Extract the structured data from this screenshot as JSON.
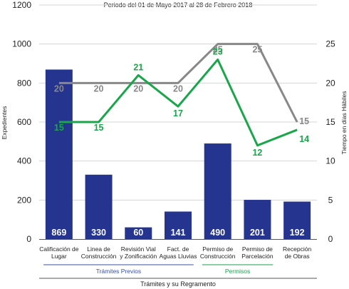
{
  "chart_data": {
    "type": "bar",
    "title": "Periodo del 01 de Mayo 2017 al 28 de Febrero 2018",
    "xlabel": "Trámites y su Regramento",
    "ylabel": "Expedientes",
    "y2label": "Tiempo en días Hábiles",
    "ylim": [
      0,
      1200
    ],
    "y_ticks": [
      "0",
      "200",
      "400",
      "600",
      "800",
      "1000",
      "1200"
    ],
    "y2lim": [
      0,
      30
    ],
    "y2_ticks": [
      "0",
      "5",
      "10",
      "15",
      "20",
      "25"
    ],
    "categories": [
      [
        "Calificación de",
        "Lugar"
      ],
      [
        "Linea de",
        "Construcción"
      ],
      [
        "Revisión Vial",
        "y Zonificación"
      ],
      [
        "Fact. de",
        "Aguas Lluvias"
      ],
      [
        "Permiso de",
        "Construcción"
      ],
      [
        "Permiso de",
        "Parcelación"
      ],
      [
        "Recepción",
        "de Obras"
      ]
    ],
    "groups": [
      {
        "name": "Trámites Previos",
        "from": 0,
        "to": 3,
        "color": "#3a50a8"
      },
      {
        "name": "Permisos",
        "from": 4,
        "to": 5,
        "color": "#1aa050"
      }
    ],
    "series": [
      {
        "kind": "bar",
        "axis": "left",
        "color": "#25358f",
        "values": [
          869,
          330,
          60,
          141,
          490,
          201,
          192
        ]
      },
      {
        "kind": "line",
        "axis": "right",
        "color": "#888888",
        "values": [
          20,
          20,
          20,
          20,
          25,
          25,
          15
        ]
      },
      {
        "kind": "line",
        "axis": "right",
        "color": "#1aa64a",
        "values": [
          15,
          15,
          21,
          17,
          23,
          12,
          14
        ]
      }
    ],
    "grid": true,
    "legend": "none"
  }
}
